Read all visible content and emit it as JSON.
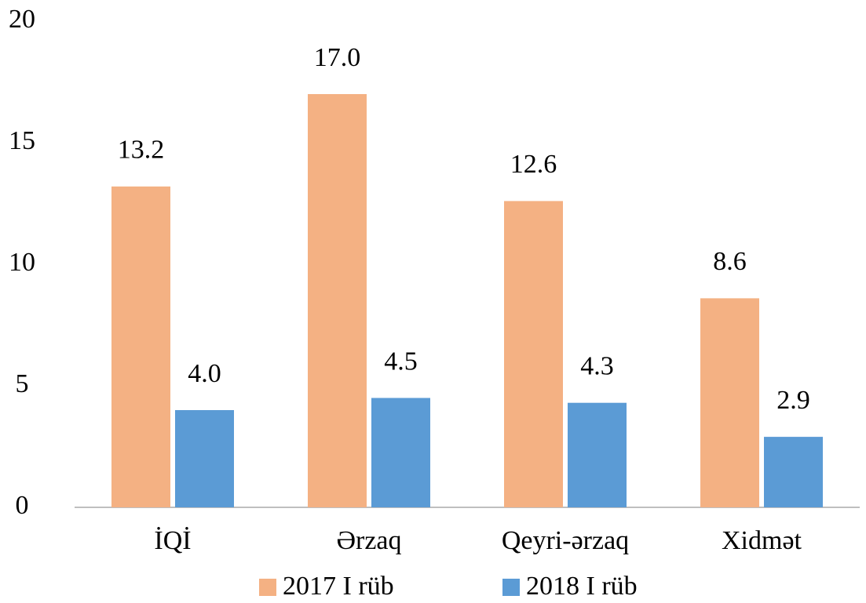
{
  "chart_data": {
    "type": "bar",
    "categories": [
      "İQİ",
      "Ərzaq",
      "Qeyri-ərzaq",
      "Xidmət"
    ],
    "series": [
      {
        "name": "2017 I rüb",
        "color": "#f4b183",
        "values": [
          13.2,
          17.0,
          12.6,
          8.6
        ],
        "value_labels": [
          "13.2",
          "17.0",
          "12.6",
          "8.6"
        ]
      },
      {
        "name": "2018 I rüb",
        "color": "#5b9bd5",
        "values": [
          4.0,
          4.5,
          4.3,
          2.9
        ],
        "value_labels": [
          "4.0",
          "4.5",
          "4.3",
          "2.9"
        ]
      }
    ],
    "ylim": [
      0,
      20
    ],
    "yticks": [
      0,
      5,
      10,
      15,
      20
    ],
    "grid": false,
    "legend": "bottom"
  }
}
